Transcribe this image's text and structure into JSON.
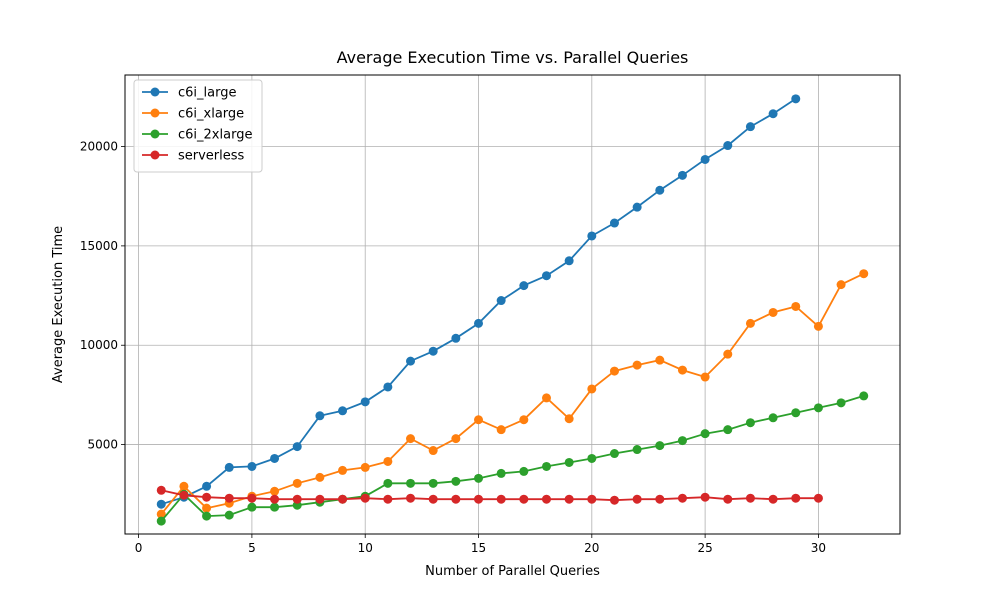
{
  "chart_data": {
    "type": "line",
    "title": "Average Execution Time vs. Parallel Queries",
    "xlabel": "Number of Parallel Queries",
    "ylabel": "Average Execution Time",
    "xlim": [
      -0.6,
      33.6
    ],
    "ylim": [
      500,
      23600
    ],
    "xticks": [
      0,
      5,
      10,
      15,
      20,
      25,
      30
    ],
    "yticks": [
      5000,
      10000,
      15000,
      20000
    ],
    "grid": true,
    "legend_position": "top-left",
    "series": [
      {
        "name": "c6i_large",
        "color": "#1f77b4",
        "x": [
          1,
          2,
          3,
          4,
          5,
          6,
          7,
          8,
          9,
          10,
          11,
          12,
          13,
          14,
          15,
          16,
          17,
          18,
          19,
          20,
          21,
          22,
          23,
          24,
          25,
          26,
          27,
          28,
          29
        ],
        "y": [
          2000,
          2350,
          2900,
          3850,
          3900,
          4300,
          4900,
          6450,
          6700,
          7150,
          7900,
          9200,
          9700,
          10350,
          11100,
          12250,
          13000,
          13500,
          14250,
          15500,
          16150,
          16950,
          17800,
          18550,
          19350,
          20050,
          21000,
          21650,
          22400
        ]
      },
      {
        "name": "c6i_xlarge",
        "color": "#ff7f0e",
        "x": [
          1,
          2,
          3,
          4,
          5,
          6,
          7,
          8,
          9,
          10,
          11,
          12,
          13,
          14,
          15,
          16,
          17,
          18,
          19,
          20,
          21,
          22,
          23,
          24,
          25,
          26,
          27,
          28,
          29,
          30,
          31,
          32
        ],
        "y": [
          1500,
          2900,
          1800,
          2050,
          2400,
          2650,
          3050,
          3350,
          3700,
          3850,
          4150,
          5300,
          4700,
          5300,
          6250,
          5750,
          6250,
          7350,
          6300,
          7800,
          8700,
          9000,
          9250,
          8750,
          8400,
          9550,
          11100,
          11650,
          11950,
          10950,
          13050,
          13600
        ]
      },
      {
        "name": "c6i_2xlarge",
        "color": "#2ca02c",
        "x": [
          1,
          2,
          3,
          4,
          5,
          6,
          7,
          8,
          9,
          10,
          11,
          12,
          13,
          14,
          15,
          16,
          17,
          18,
          19,
          20,
          21,
          22,
          23,
          24,
          25,
          26,
          27,
          28,
          29,
          30,
          31,
          32
        ],
        "y": [
          1150,
          2500,
          1400,
          1450,
          1850,
          1850,
          1950,
          2100,
          2250,
          2400,
          3050,
          3050,
          3050,
          3150,
          3300,
          3550,
          3650,
          3900,
          4100,
          4300,
          4550,
          4750,
          4950,
          5200,
          5550,
          5750,
          6100,
          6350,
          6600,
          6850,
          7100,
          7450
        ]
      },
      {
        "name": "serverless",
        "color": "#d62728",
        "x": [
          1,
          2,
          3,
          4,
          5,
          6,
          7,
          8,
          9,
          10,
          11,
          12,
          13,
          14,
          15,
          16,
          17,
          18,
          19,
          20,
          21,
          22,
          23,
          24,
          25,
          26,
          27,
          28,
          29,
          30
        ],
        "y": [
          2700,
          2450,
          2350,
          2300,
          2300,
          2250,
          2250,
          2250,
          2250,
          2300,
          2250,
          2300,
          2250,
          2250,
          2250,
          2250,
          2250,
          2250,
          2250,
          2250,
          2200,
          2250,
          2250,
          2300,
          2350,
          2250,
          2300,
          2250,
          2300,
          2300
        ]
      }
    ]
  }
}
